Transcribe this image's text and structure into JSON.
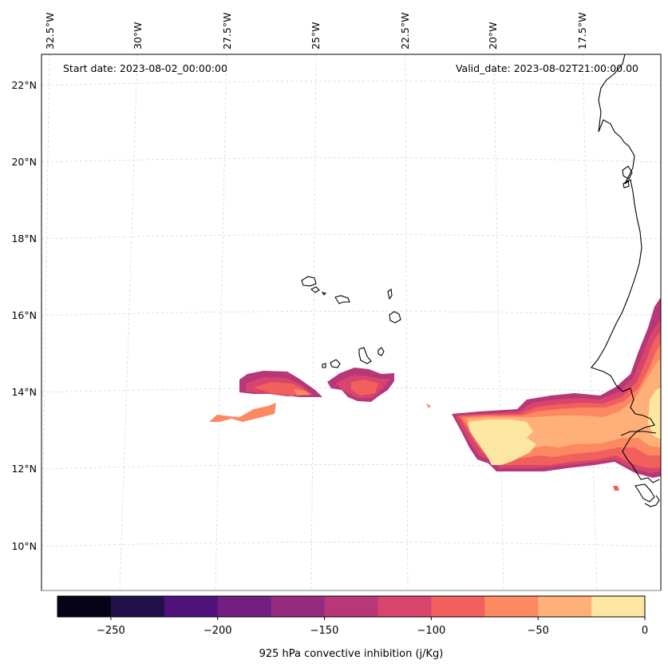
{
  "map": {
    "start_date": "Start date: 2023-08-02_00:00:00",
    "valid_date": "Valid_date: 2023-08-02T21:00:00.00",
    "lon_labels": [
      "32.5°W",
      "30°W",
      "27.5°W",
      "25°W",
      "22.5°W",
      "20°W",
      "17.5°W"
    ],
    "lat_labels": [
      "22°N",
      "20°N",
      "18°N",
      "16°N",
      "14°N",
      "12°N",
      "10°N"
    ]
  },
  "colorbar": {
    "label": "925 hPa convective inhibition (j/Kg)",
    "tick_labels": [
      "−250",
      "−200",
      "−150",
      "−100",
      "−50",
      "0"
    ],
    "levels": [
      -275,
      -250,
      -225,
      -200,
      -175,
      -150,
      -125,
      -100,
      -75,
      -50,
      -25,
      0
    ],
    "colors": [
      "#050416",
      "#20114b",
      "#4f127b",
      "#721f81",
      "#952c80",
      "#b73779",
      "#d8456c",
      "#f1605d",
      "#fc8961",
      "#feb078",
      "#fde5a2"
    ]
  }
}
